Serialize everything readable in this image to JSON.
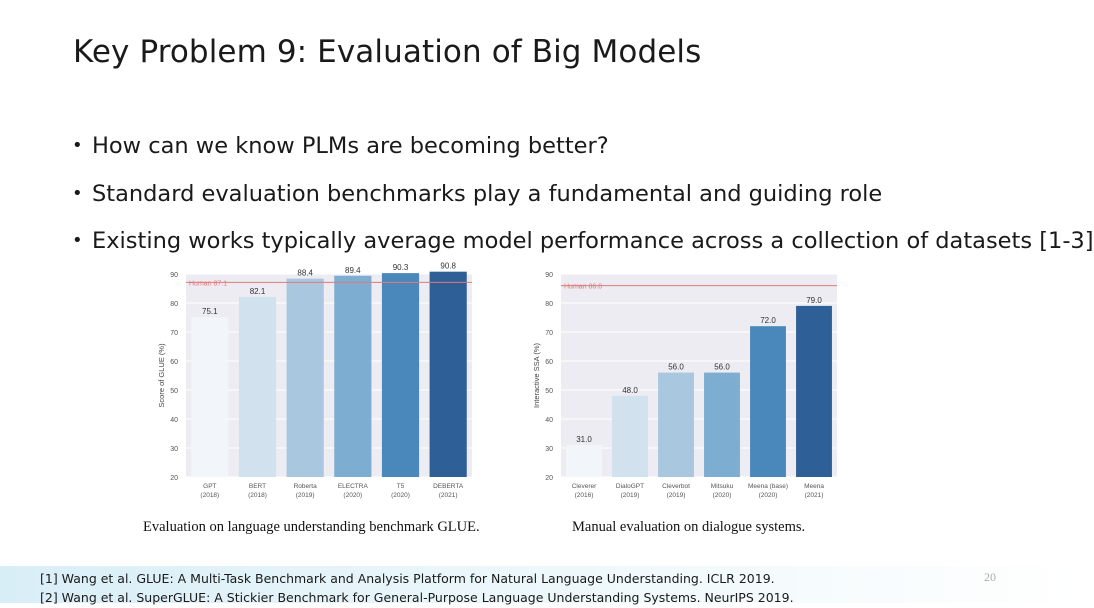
{
  "slide": {
    "title": "Key Problem 9: Evaluation of Big Models",
    "bullets": [
      "How can we know PLMs are becoming better?",
      "Standard evaluation benchmarks play a fundamental and guiding role",
      "Existing works typically average model performance across a collection of datasets [1-3]"
    ],
    "page_number": "20",
    "references": [
      "[1] Wang et al. GLUE: A Multi-Task Benchmark and Analysis Platform for Natural Language Understanding. ICLR 2019.",
      "[2] Wang et al. SuperGLUE: A Stickier Benchmark for General-Purpose Language Understanding Systems. NeurIPS 2019."
    ]
  },
  "chart_data": [
    {
      "type": "bar",
      "caption": "Evaluation on language understanding benchmark GLUE.",
      "ylabel": "Score of GLUE (%)",
      "ylim": [
        20,
        90
      ],
      "yticks": [
        20,
        30,
        40,
        50,
        60,
        70,
        80,
        90
      ],
      "categories": [
        [
          "GPT",
          "(2018)"
        ],
        [
          "BERT",
          "(2018)"
        ],
        [
          "Roberta",
          "(2019)"
        ],
        [
          "ELECTRA",
          "(2020)"
        ],
        [
          "T5",
          "(2020)"
        ],
        [
          "DEBERTA",
          "(2021)"
        ]
      ],
      "values": [
        75.1,
        82.1,
        88.4,
        89.4,
        90.3,
        90.8
      ],
      "labels": [
        "75.1",
        "82.1",
        "88.4",
        "89.4",
        "90.3",
        "90.8"
      ],
      "reference_line": {
        "label": "Human 87.1",
        "value": 87.1,
        "color": "#e07a7a"
      },
      "colors": [
        "#f2f6fa",
        "#d2e1ee",
        "#a9c7de",
        "#7dadd1",
        "#4a87bb",
        "#2e5f97"
      ],
      "background": "#ececf2",
      "grid": true
    },
    {
      "type": "bar",
      "caption": "Manual evaluation on dialogue systems.",
      "ylabel": "Interactive SSA (%)",
      "ylim": [
        20,
        90
      ],
      "yticks": [
        20,
        30,
        40,
        50,
        60,
        70,
        80,
        90
      ],
      "categories": [
        [
          "Cleverer",
          "(2016)"
        ],
        [
          "DialoGPT",
          "(2019)"
        ],
        [
          "Cleverbot",
          "(2019)"
        ],
        [
          "Mitsuku",
          "(2020)"
        ],
        [
          "Meena (base)",
          "(2020)"
        ],
        [
          "Meena",
          "(2021)"
        ]
      ],
      "values": [
        31.0,
        48.0,
        56.0,
        56.0,
        72.0,
        79.0
      ],
      "labels": [
        "31.0",
        "48.0",
        "56.0",
        "56.0",
        "72.0",
        "79.0"
      ],
      "reference_line": {
        "label": "Human 86.0",
        "value": 86.0,
        "color": "#e07a7a"
      },
      "colors": [
        "#f2f6fa",
        "#d2e1ee",
        "#a9c7de",
        "#7dadd1",
        "#4a87bb",
        "#2e5f97"
      ],
      "background": "#ececf2",
      "grid": true
    }
  ]
}
